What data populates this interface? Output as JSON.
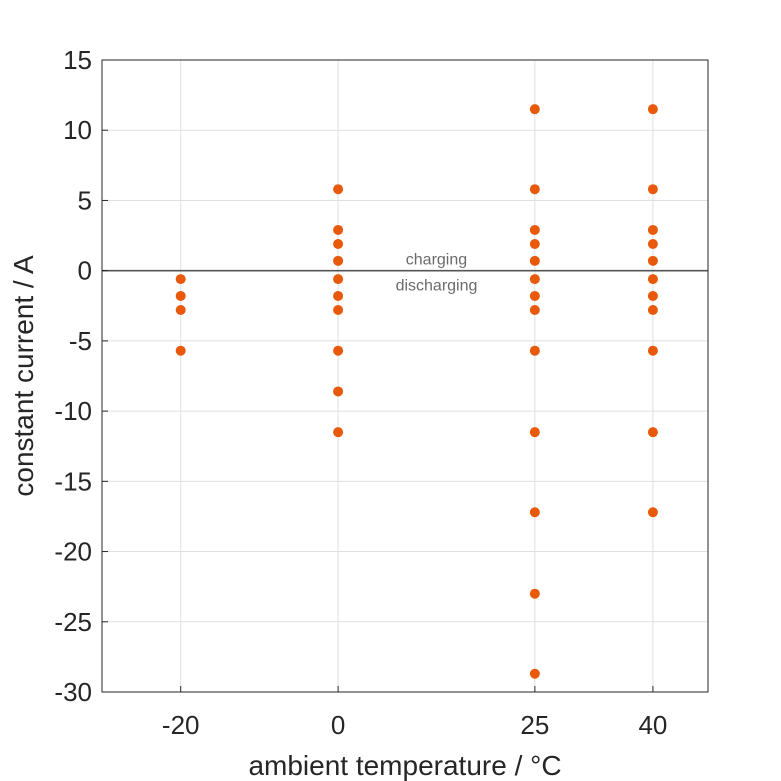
{
  "chart_data": {
    "type": "scatter",
    "title": "",
    "xlabel": "ambient temperature / °C",
    "ylabel": "constant current / A",
    "xlim": [
      -30,
      47
    ],
    "ylim": [
      -30,
      15
    ],
    "x_ticks": [
      -20,
      0,
      25,
      40
    ],
    "y_ticks": [
      15,
      10,
      5,
      0,
      -5,
      -10,
      -15,
      -20,
      -25,
      -30
    ],
    "grid": true,
    "zero_line": true,
    "marker_color": "#E8590C",
    "zero_line_color": "#555555",
    "annotations": {
      "above_zero": "charging",
      "below_zero": "discharging",
      "x": 12.5
    },
    "series": [
      {
        "points": [
          [
            -20,
            -0.6
          ],
          [
            -20,
            -1.8
          ],
          [
            -20,
            -2.8
          ],
          [
            -20,
            -5.7
          ],
          [
            0,
            5.8
          ],
          [
            0,
            2.9
          ],
          [
            0,
            1.9
          ],
          [
            0,
            0.7
          ],
          [
            0,
            -0.6
          ],
          [
            0,
            -1.8
          ],
          [
            0,
            -2.8
          ],
          [
            0,
            -5.7
          ],
          [
            0,
            -8.6
          ],
          [
            0,
            -11.5
          ],
          [
            25,
            11.5
          ],
          [
            25,
            5.8
          ],
          [
            25,
            2.9
          ],
          [
            25,
            1.9
          ],
          [
            25,
            0.7
          ],
          [
            25,
            -0.6
          ],
          [
            25,
            -1.8
          ],
          [
            25,
            -2.8
          ],
          [
            25,
            -5.7
          ],
          [
            25,
            -11.5
          ],
          [
            25,
            -17.2
          ],
          [
            25,
            -23.0
          ],
          [
            25,
            -28.7
          ],
          [
            40,
            11.5
          ],
          [
            40,
            5.8
          ],
          [
            40,
            2.9
          ],
          [
            40,
            1.9
          ],
          [
            40,
            0.7
          ],
          [
            40,
            -0.6
          ],
          [
            40,
            -1.8
          ],
          [
            40,
            -2.8
          ],
          [
            40,
            -5.7
          ],
          [
            40,
            -11.5
          ],
          [
            40,
            -17.2
          ]
        ]
      }
    ]
  }
}
